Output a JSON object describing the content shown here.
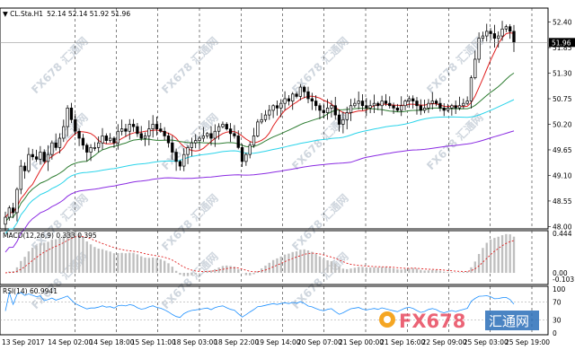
{
  "header": {
    "symbol": "CL.Sta.H1",
    "ohlc": "52.14 52.14 51.92 51.96"
  },
  "panels": {
    "main": {
      "price_ticks": [
        "52.40",
        "51.85",
        "51.30",
        "50.75",
        "50.20",
        "49.65",
        "49.10",
        "48.55",
        "48.00"
      ],
      "current_price": "51.96",
      "current_price_value": 51.96
    },
    "macd": {
      "label": "MACD(12,26,9) 0.333 0.395",
      "ticks": [
        "0.444",
        "0.00",
        "-0.103"
      ]
    },
    "rsi": {
      "label": "RSI(14) 60.9941",
      "ticks": [
        "100",
        "70",
        "30",
        "0"
      ]
    }
  },
  "time_axis": [
    "13 Sep 2017",
    "14 Sep 02:00",
    "14 Sep 18:00",
    "15 Sep 11:00",
    "18 Sep 03:00",
    "18 Sep 22:00",
    "19 Sep 14:00",
    "20 Sep 07:00",
    "21 Sep 00:00",
    "21 Sep 16:00",
    "22 Sep 09:00",
    "25 Sep 03:00",
    "25 Sep 19:00"
  ],
  "watermark": {
    "text": "FX678 汇通网",
    "brand_text": "FX678",
    "brand_cn": "汇通网"
  },
  "colors": {
    "bull": "#000000",
    "bear": "#000000",
    "ma_short": "#e02020",
    "ma_mid": "#2e7d32",
    "ma_long": "#2ad4ea",
    "ma_very_long": "#8a2be2",
    "macd_hist": "#bfbfbf",
    "macd_signal": "#e02020",
    "rsi_line": "#1e90ff",
    "grid": "#000000",
    "current_line": "#999999",
    "brand_orange": "#f5a623",
    "brand_red": "#e84a5f",
    "brand_blue": "#2a6fb8"
  },
  "chart_data": {
    "type": "candlestick",
    "symbol": "CL.Sta.H1",
    "ylim": [
      47.95,
      52.7
    ],
    "close_series": [
      48.2,
      48.4,
      48.3,
      48.8,
      49.3,
      49.2,
      49.55,
      49.5,
      49.45,
      49.6,
      49.4,
      49.55,
      49.8,
      49.7,
      49.9,
      50.15,
      50.55,
      50.3,
      50.05,
      49.9,
      49.75,
      49.6,
      49.7,
      49.7,
      49.8,
      49.95,
      49.85,
      49.9,
      49.8,
      50.05,
      50.1,
      50.05,
      50.2,
      50.15,
      50.0,
      49.9,
      49.95,
      50.1,
      50.2,
      50.1,
      50.05,
      49.95,
      49.8,
      49.6,
      49.4,
      49.3,
      49.55,
      49.7,
      49.8,
      49.85,
      49.9,
      49.95,
      50.0,
      49.9,
      50.05,
      50.15,
      50.2,
      50.1,
      50.0,
      49.95,
      49.7,
      49.4,
      49.55,
      49.75,
      49.95,
      50.25,
      50.3,
      50.4,
      50.5,
      50.6,
      50.55,
      50.65,
      50.75,
      50.7,
      50.85,
      50.8,
      51.0,
      50.9,
      50.75,
      50.7,
      50.6,
      50.5,
      50.45,
      50.55,
      50.6,
      50.4,
      50.2,
      50.3,
      50.45,
      50.6,
      50.65,
      50.7,
      50.6,
      50.55,
      50.6,
      50.65,
      50.6,
      50.7,
      50.65,
      50.6,
      50.55,
      50.5,
      50.6,
      50.7,
      50.75,
      50.7,
      50.6,
      50.5,
      50.55,
      50.65,
      50.7,
      50.65,
      50.55,
      50.5,
      50.55,
      50.6,
      50.55,
      50.6,
      50.65,
      50.7,
      51.2,
      51.6,
      52.05,
      52.1,
      52.2,
      52.15,
      52.05,
      52.1,
      52.25,
      52.3,
      52.2,
      51.96
    ],
    "price_axis_ticks": [
      52.4,
      51.85,
      51.3,
      50.75,
      50.2,
      49.65,
      49.1,
      48.55,
      48.0
    ],
    "moving_averages": [
      {
        "color": "ma_short"
      },
      {
        "color": "ma_mid"
      },
      {
        "color": "ma_long"
      },
      {
        "color": "ma_very_long"
      }
    ],
    "macd": {
      "fast": 12,
      "slow": 26,
      "signal": 9,
      "value": 0.333,
      "signal_value": 0.395,
      "ylim": [
        -0.103,
        0.444
      ]
    },
    "rsi": {
      "period": 14,
      "value": 60.9941,
      "levels": [
        70,
        30
      ],
      "ylim": [
        0,
        100
      ]
    }
  }
}
